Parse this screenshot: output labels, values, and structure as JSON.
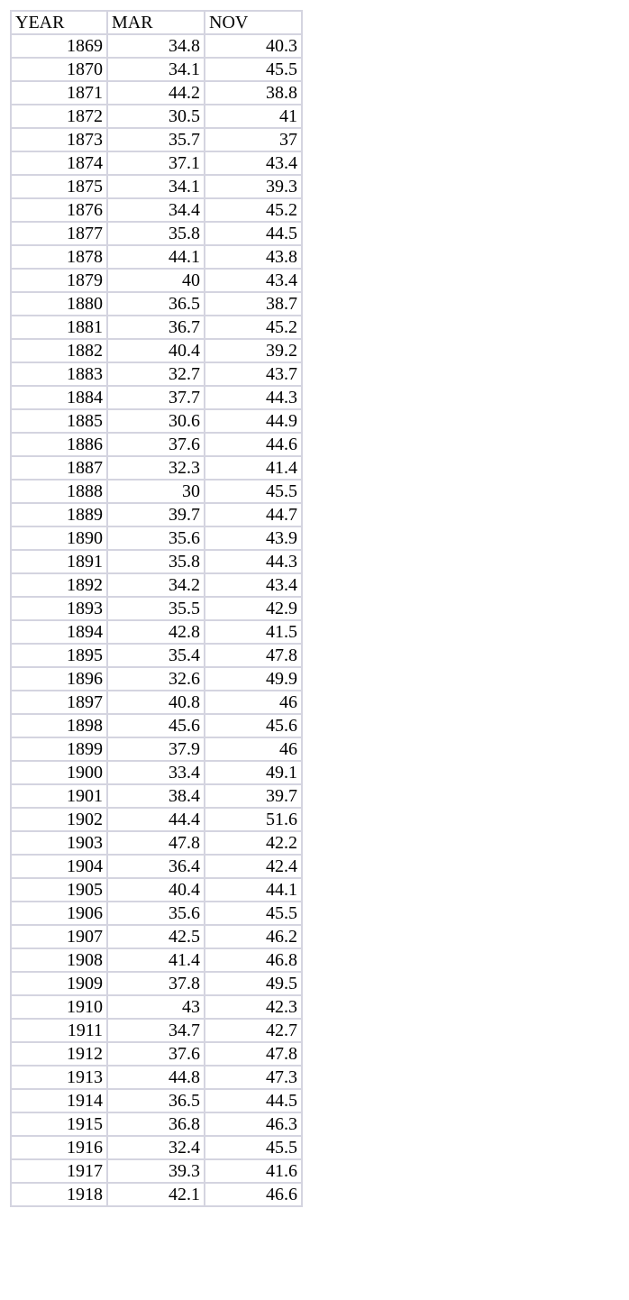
{
  "table": {
    "headers": [
      "YEAR",
      "MAR",
      "NOV"
    ],
    "rows": [
      [
        "1869",
        "34.8",
        "40.3"
      ],
      [
        "1870",
        "34.1",
        "45.5"
      ],
      [
        "1871",
        "44.2",
        "38.8"
      ],
      [
        "1872",
        "30.5",
        "41"
      ],
      [
        "1873",
        "35.7",
        "37"
      ],
      [
        "1874",
        "37.1",
        "43.4"
      ],
      [
        "1875",
        "34.1",
        "39.3"
      ],
      [
        "1876",
        "34.4",
        "45.2"
      ],
      [
        "1877",
        "35.8",
        "44.5"
      ],
      [
        "1878",
        "44.1",
        "43.8"
      ],
      [
        "1879",
        "40",
        "43.4"
      ],
      [
        "1880",
        "36.5",
        "38.7"
      ],
      [
        "1881",
        "36.7",
        "45.2"
      ],
      [
        "1882",
        "40.4",
        "39.2"
      ],
      [
        "1883",
        "32.7",
        "43.7"
      ],
      [
        "1884",
        "37.7",
        "44.3"
      ],
      [
        "1885",
        "30.6",
        "44.9"
      ],
      [
        "1886",
        "37.6",
        "44.6"
      ],
      [
        "1887",
        "32.3",
        "41.4"
      ],
      [
        "1888",
        "30",
        "45.5"
      ],
      [
        "1889",
        "39.7",
        "44.7"
      ],
      [
        "1890",
        "35.6",
        "43.9"
      ],
      [
        "1891",
        "35.8",
        "44.3"
      ],
      [
        "1892",
        "34.2",
        "43.4"
      ],
      [
        "1893",
        "35.5",
        "42.9"
      ],
      [
        "1894",
        "42.8",
        "41.5"
      ],
      [
        "1895",
        "35.4",
        "47.8"
      ],
      [
        "1896",
        "32.6",
        "49.9"
      ],
      [
        "1897",
        "40.8",
        "46"
      ],
      [
        "1898",
        "45.6",
        "45.6"
      ],
      [
        "1899",
        "37.9",
        "46"
      ],
      [
        "1900",
        "33.4",
        "49.1"
      ],
      [
        "1901",
        "38.4",
        "39.7"
      ],
      [
        "1902",
        "44.4",
        "51.6"
      ],
      [
        "1903",
        "47.8",
        "42.2"
      ],
      [
        "1904",
        "36.4",
        "42.4"
      ],
      [
        "1905",
        "40.4",
        "44.1"
      ],
      [
        "1906",
        "35.6",
        "45.5"
      ],
      [
        "1907",
        "42.5",
        "46.2"
      ],
      [
        "1908",
        "41.4",
        "46.8"
      ],
      [
        "1909",
        "37.8",
        "49.5"
      ],
      [
        "1910",
        "43",
        "42.3"
      ],
      [
        "1911",
        "34.7",
        "42.7"
      ],
      [
        "1912",
        "37.6",
        "47.8"
      ],
      [
        "1913",
        "44.8",
        "47.3"
      ],
      [
        "1914",
        "36.5",
        "44.5"
      ],
      [
        "1915",
        "36.8",
        "46.3"
      ],
      [
        "1916",
        "32.4",
        "45.5"
      ],
      [
        "1917",
        "39.3",
        "41.6"
      ],
      [
        "1918",
        "42.1",
        "46.6"
      ]
    ]
  },
  "colors": {
    "grid_border": "#d4d4e0",
    "text": "#000000",
    "background": "#ffffff"
  }
}
